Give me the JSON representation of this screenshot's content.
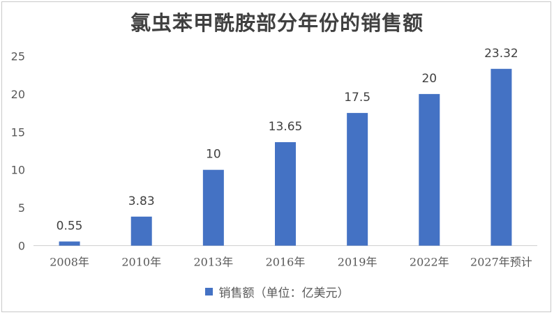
{
  "chart_data": {
    "type": "bar",
    "title": "氯虫苯甲酰胺部分年份的销售额",
    "categories": [
      "2008年",
      "2010年",
      "2013年",
      "2016年",
      "2019年",
      "2022年",
      "2027年预计"
    ],
    "series": [
      {
        "name": "销售额（单位：亿美元）",
        "values": [
          0.55,
          3.83,
          10,
          13.65,
          17.5,
          20,
          23.32
        ],
        "color": "#4472c4"
      }
    ],
    "data_labels": [
      "0.55",
      "3.83",
      "10",
      "13.65",
      "17.5",
      "20",
      "23.32"
    ],
    "ylim": [
      0,
      25
    ],
    "yticks": [
      0,
      5,
      10,
      15,
      20,
      25
    ],
    "xlabel": "",
    "ylabel": "",
    "grid": false,
    "legend_position": "bottom"
  }
}
